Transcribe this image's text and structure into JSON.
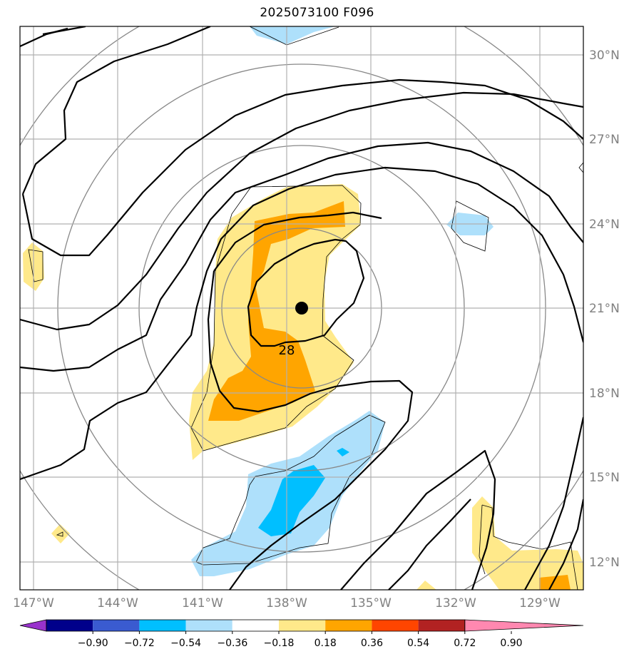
{
  "title": "2025073100 F096",
  "lon_labels": [
    "147°W",
    "144°W",
    "141°W",
    "138°W",
    "135°W",
    "132°W",
    "129°W"
  ],
  "lat_labels": [
    "30°N",
    "27°N",
    "24°N",
    "21°N",
    "18°N",
    "15°N",
    "12°N"
  ],
  "contour_label": "28",
  "colorbar": {
    "ticks": [
      "−0.90",
      "−0.72",
      "−0.54",
      "−0.36",
      "−0.18",
      "0.18",
      "0.36",
      "0.54",
      "0.72",
      "0.90"
    ],
    "colors": [
      "#9932cc",
      "#00008b",
      "#3a5bd0",
      "#00bfff",
      "#aee0fb",
      "#ffffff",
      "#ffe98a",
      "#ffa500",
      "#ff4500",
      "#b22222",
      "#ff88b0"
    ]
  },
  "fill_colors": {
    "light_yellow": "#ffe98a",
    "orange": "#ffa500",
    "light_blue": "#aee0fb",
    "deep_sky_blue": "#00bfff"
  }
}
